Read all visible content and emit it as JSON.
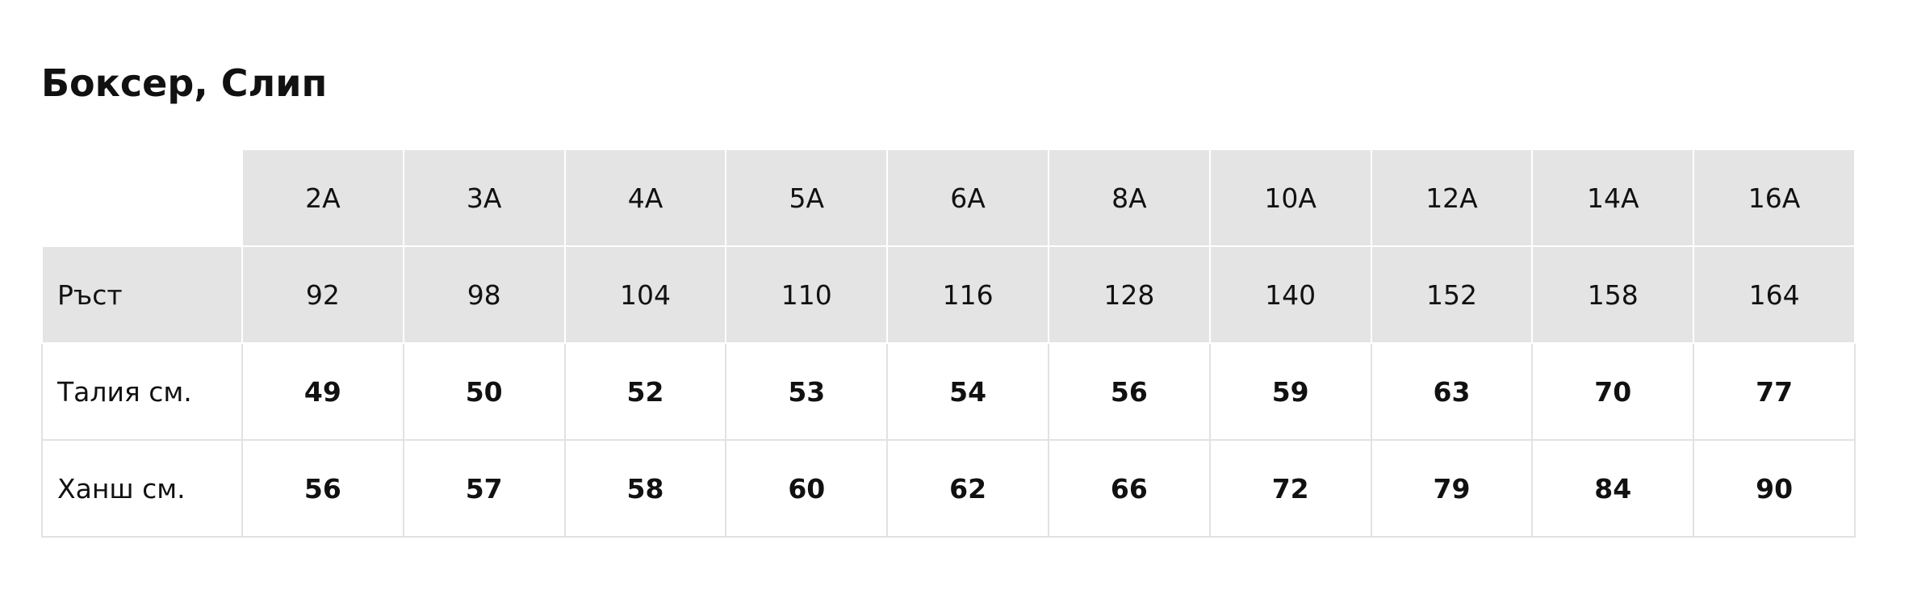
{
  "title": "Боксер, Слип",
  "table": {
    "sizes": [
      "2A",
      "3A",
      "4A",
      "5A",
      "6A",
      "8A",
      "10A",
      "12A",
      "14A",
      "16A"
    ],
    "rows": [
      {
        "label": "Ръст",
        "values": [
          "92",
          "98",
          "104",
          "110",
          "116",
          "128",
          "140",
          "152",
          "158",
          "164"
        ]
      },
      {
        "label": "Талия см.",
        "values": [
          "49",
          "50",
          "52",
          "53",
          "54",
          "56",
          "59",
          "63",
          "70",
          "77"
        ]
      },
      {
        "label": "Ханш см.",
        "values": [
          "56",
          "57",
          "58",
          "60",
          "62",
          "66",
          "72",
          "79",
          "84",
          "90"
        ]
      }
    ]
  }
}
